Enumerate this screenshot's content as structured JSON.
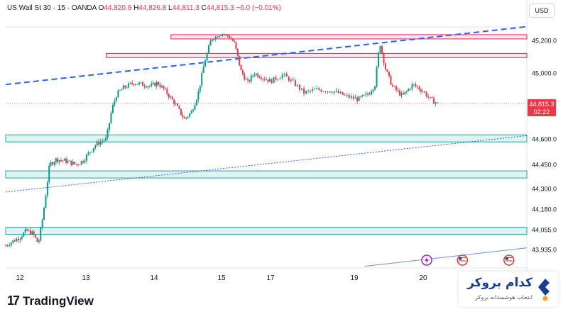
{
  "header": {
    "symbol": "US Wall St 30 · 15 · OANDA",
    "open_label": "O",
    "open": "44,820.8",
    "high_label": "H",
    "high": "44,826.8",
    "low_label": "L",
    "low": "44,811.3",
    "close_label": "C",
    "close": "44,815.3",
    "change": "−6.0 (−0.01%)"
  },
  "currency": "USD",
  "price_tag": {
    "price": "44,815.3",
    "countdown": "02:22"
  },
  "branding": {
    "tradingview": "TradingView",
    "broker_name": "کدام بروکر",
    "broker_tagline": "انتخاب هوشمندانه بروکر"
  },
  "colors": {
    "up": "#089981",
    "down": "#f23645",
    "resistance_fill": "#fce4ec",
    "resistance_border": "#e91e63",
    "support_fill": "#e0f2f1",
    "support_border": "#26a69a",
    "trend_dashed": "#2962ff",
    "trend_dotted": "#2962ff",
    "event_red": "#e53935",
    "event_purple": "#9c27b0"
  },
  "chart_data": {
    "type": "candlestick",
    "title": "US Wall St 30 · 15 · OANDA",
    "x_tick_labels": [
      "12",
      "13",
      "14",
      "15",
      "17",
      "19",
      "20"
    ],
    "x_tick_positions": [
      0.0,
      1.0,
      2.0,
      3.0,
      3.75,
      4.75,
      5.75
    ],
    "xlim": [
      -0.2,
      7.2
    ],
    "y_tick_labels": [
      "45,200.0",
      "45,000.0",
      "44,815.3",
      "44,600.0",
      "44,450.0",
      "44,300.0",
      "44,180.0",
      "44,055.0",
      "43,935.0"
    ],
    "y_ticks": [
      45200,
      45000,
      44815.3,
      44600,
      44450,
      44300,
      44180,
      44055,
      43935
    ],
    "ylim": [
      43880,
      45330
    ],
    "scale": "non-linear (price axis as printed)",
    "last_price": 44815.3,
    "close_path": [
      [
        -0.2,
        43960
      ],
      [
        0.0,
        44010
      ],
      [
        0.1,
        44050
      ],
      [
        0.2,
        44030
      ],
      [
        0.28,
        43970
      ],
      [
        0.35,
        44140
      ],
      [
        0.4,
        44290
      ],
      [
        0.45,
        44450
      ],
      [
        0.55,
        44480
      ],
      [
        0.7,
        44470
      ],
      [
        0.85,
        44450
      ],
      [
        0.95,
        44470
      ],
      [
        1.05,
        44520
      ],
      [
        1.15,
        44570
      ],
      [
        1.3,
        44600
      ],
      [
        1.38,
        44780
      ],
      [
        1.45,
        44870
      ],
      [
        1.55,
        44910
      ],
      [
        1.7,
        44940
      ],
      [
        1.85,
        44930
      ],
      [
        1.95,
        44920
      ],
      [
        2.05,
        44940
      ],
      [
        2.15,
        44900
      ],
      [
        2.3,
        44820
      ],
      [
        2.45,
        44720
      ],
      [
        2.55,
        44760
      ],
      [
        2.65,
        44870
      ],
      [
        2.75,
        45070
      ],
      [
        2.85,
        45210
      ],
      [
        3.0,
        45260
      ],
      [
        3.1,
        45240
      ],
      [
        3.2,
        45180
      ],
      [
        3.3,
        45010
      ],
      [
        3.4,
        44940
      ],
      [
        3.5,
        45000
      ],
      [
        3.6,
        44980
      ],
      [
        3.75,
        44950
      ],
      [
        3.9,
        44990
      ],
      [
        4.05,
        44930
      ],
      [
        4.15,
        44880
      ],
      [
        4.3,
        44900
      ],
      [
        4.5,
        44890
      ],
      [
        4.65,
        44860
      ],
      [
        4.8,
        44840
      ],
      [
        4.95,
        44870
      ],
      [
        5.05,
        44930
      ],
      [
        5.12,
        45190
      ],
      [
        5.2,
        45030
      ],
      [
        5.3,
        44920
      ],
      [
        5.45,
        44860
      ],
      [
        5.6,
        44930
      ],
      [
        5.75,
        44890
      ],
      [
        5.85,
        44840
      ],
      [
        5.95,
        44815
      ]
    ],
    "resistance_zones": [
      {
        "from": 45225,
        "to": 45250,
        "x_start": 2.25
      },
      {
        "from": 45095,
        "to": 45120,
        "x_start": 1.3
      }
    ],
    "support_zones": [
      {
        "from": 44590,
        "to": 44625,
        "x_start": -0.2
      },
      {
        "from": 44380,
        "to": 44410,
        "x_start": -0.2
      },
      {
        "from": 44040,
        "to": 44070,
        "x_start": -0.2
      }
    ],
    "trendlines": [
      {
        "style": "dashed",
        "from": [
          -0.2,
          44930
        ],
        "to": [
          7.2,
          45320
        ]
      },
      {
        "style": "dotted",
        "from": [
          -0.2,
          44280
        ],
        "to": [
          7.2,
          44620
        ]
      },
      {
        "style": "solid",
        "from": [
          4.9,
          43885
        ],
        "to": [
          7.2,
          43945
        ]
      }
    ],
    "event_markers": [
      {
        "kind": "lightning",
        "x": 5.8
      },
      {
        "kind": "us-flag",
        "x": 6.3
      },
      {
        "kind": "us-flag",
        "x": 6.95
      }
    ]
  }
}
